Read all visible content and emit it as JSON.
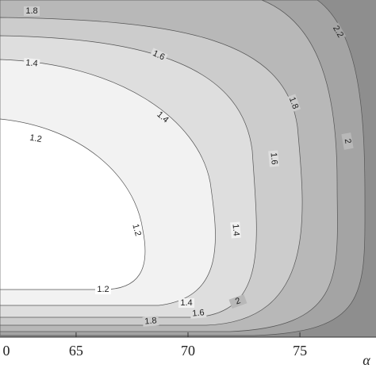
{
  "chart_data": {
    "type": "contour",
    "x_label": "α",
    "xlim": [
      61.6,
      78.4
    ],
    "xticks": [
      {
        "value": 60,
        "label": "0"
      },
      65,
      70,
      75
    ],
    "levels": [
      2.2,
      2,
      1.8,
      1.6,
      1.4,
      1.2
    ],
    "colors": [
      "#8e8e8e",
      "#a4a4a4",
      "#b8b8b8",
      "#cccccc",
      "#dedede",
      "#f2f2f2",
      "#ffffff"
    ]
  }
}
